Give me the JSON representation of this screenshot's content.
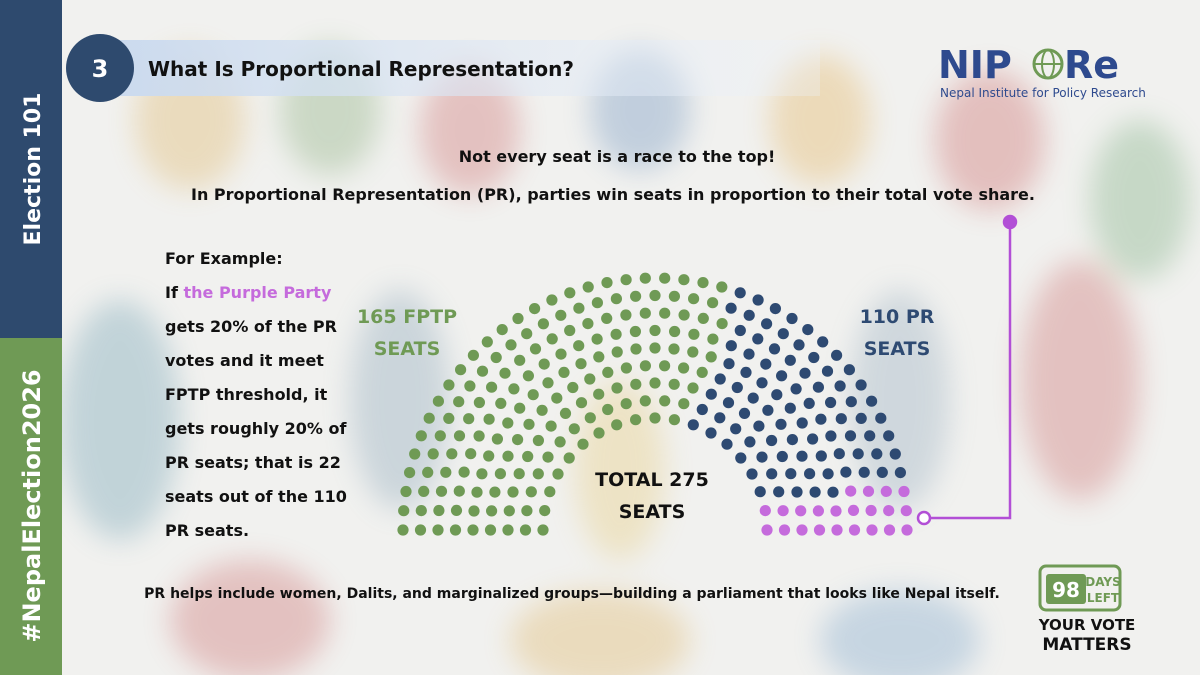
{
  "sidebar": {
    "top": "Election 101",
    "bottom": "#NepalElection2026"
  },
  "header": {
    "number": "3",
    "title": "What Is Proportional Representation?"
  },
  "logo": {
    "name_left": "NIP",
    "name_right": "Re",
    "tagline": "Nepal Institute for Policy Research"
  },
  "intro": {
    "hook": "Not every seat is a race to the top!",
    "definition": "In Proportional Representation (PR), parties win seats in proportion to their total vote share."
  },
  "example": {
    "heading": "For Example:",
    "lead": "If ",
    "highlight": "the Purple Party",
    "lines": [
      "gets 20% of the PR",
      "votes and it meet",
      "FPTP threshold, it",
      "gets roughly 20% of",
      "PR seats; that is 22",
      "seats out of the 110",
      "PR seats."
    ]
  },
  "parliament": {
    "fptp_seats": 165,
    "pr_seats": 110,
    "purple_seats": 22,
    "fptp_color": "#6f9a55",
    "pr_color": "#2e4a72",
    "purple_color": "#c56bdc",
    "fptp_label": [
      "165 FPTP",
      "SEATS"
    ],
    "pr_label": [
      "110 PR",
      "SEATS"
    ],
    "total_label": [
      "TOTAL 275",
      "SEATS"
    ]
  },
  "footer": "PR helps include women, Dalits, and marginalized groups—building a parliament that looks like Nepal itself.",
  "badge": {
    "days": "98",
    "days_word": "DAYS",
    "left_word": "LEFT",
    "line1": "YOUR VOTE",
    "line2": "MATTERS"
  }
}
